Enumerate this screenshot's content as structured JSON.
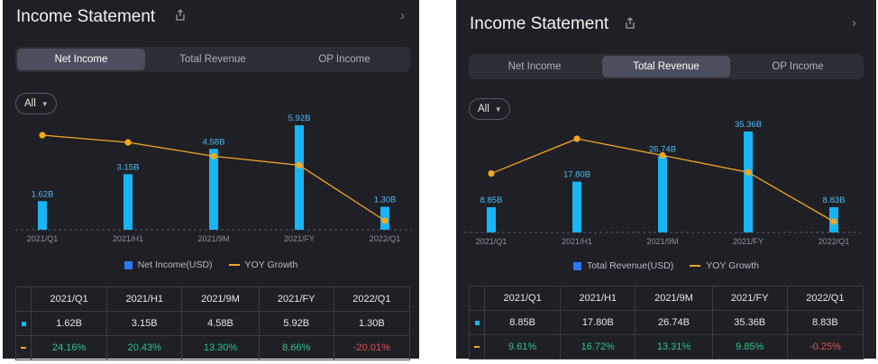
{
  "panels": [
    {
      "title": "Income Statement",
      "tabs": [
        "Net Income",
        "Total Revenue",
        "OP Income"
      ],
      "active_tab": 0,
      "filter": "All",
      "legend": {
        "bar": "Net Income(USD)",
        "line": "YOY Growth"
      },
      "chart_data": {
        "type": "bar",
        "categories": [
          "2021/Q1",
          "2021/H1",
          "2021/9M",
          "2021/FY",
          "2022/Q1"
        ],
        "series": [
          {
            "name": "Net Income(USD)",
            "type": "bar",
            "values": [
              1.62,
              3.15,
              4.58,
              5.92,
              1.3
            ],
            "labels": [
              "1.62B",
              "3.15B",
              "4.58B",
              "5.92B",
              "1.30B"
            ]
          },
          {
            "name": "YOY Growth",
            "type": "line",
            "values": [
              24.16,
              20.43,
              13.3,
              8.66,
              -20.01
            ]
          }
        ]
      },
      "table": {
        "headers": [
          "2021/Q1",
          "2021/H1",
          "2021/9M",
          "2021/FY",
          "2022/Q1"
        ],
        "values": [
          "1.62B",
          "3.15B",
          "4.58B",
          "5.92B",
          "1.30B"
        ],
        "growth": [
          "24.16%",
          "20.43%",
          "13.30%",
          "8.66%",
          "-20.01%"
        ]
      }
    },
    {
      "title": "Income Statement",
      "tabs": [
        "Net Income",
        "Total Revenue",
        "OP Income"
      ],
      "active_tab": 1,
      "filter": "All",
      "legend": {
        "bar": "Total Revenue(USD)",
        "line": "YOY Growth"
      },
      "chart_data": {
        "type": "bar",
        "categories": [
          "2021/Q1",
          "2021/H1",
          "2021/9M",
          "2021/FY",
          "2022/Q1"
        ],
        "series": [
          {
            "name": "Total Revenue(USD)",
            "type": "bar",
            "values": [
              8.85,
              17.8,
              26.74,
              35.36,
              8.83
            ],
            "labels": [
              "8.85B",
              "17.80B",
              "26.74B",
              "35.36B",
              "8.83B"
            ]
          },
          {
            "name": "YOY Growth",
            "type": "line",
            "values": [
              9.61,
              16.72,
              13.31,
              9.85,
              -0.25
            ]
          }
        ]
      },
      "table": {
        "headers": [
          "2021/Q1",
          "2021/H1",
          "2021/9M",
          "2021/FY",
          "2022/Q1"
        ],
        "values": [
          "8.85B",
          "17.80B",
          "26.74B",
          "35.36B",
          "8.83B"
        ],
        "growth": [
          "9.61%",
          "16.72%",
          "13.31%",
          "9.85%",
          "-0.25%"
        ]
      }
    }
  ],
  "colors": {
    "panel_bg": "#1f2026",
    "bar": "#16b5f7",
    "line": "#f5a623",
    "positive": "#2bc28c",
    "negative": "#e25151"
  },
  "icons": {
    "share": "share-icon",
    "chevron": "chevron-right-icon"
  }
}
